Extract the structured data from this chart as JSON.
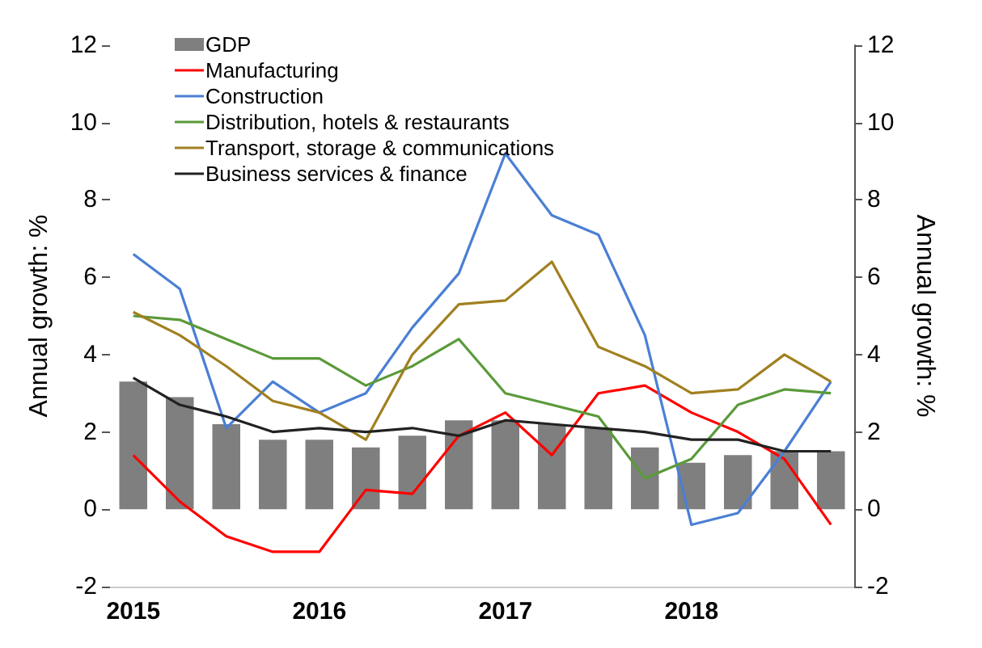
{
  "chart_data": {
    "type": "bar",
    "ylabel": "Annual growth: %",
    "y2label": "Annual growth: %",
    "categories": [
      "2015",
      null,
      null,
      null,
      "2016",
      null,
      null,
      null,
      "2017",
      null,
      null,
      null,
      "2018",
      null,
      null,
      null
    ],
    "series": [
      {
        "name": "GDP",
        "color": "#7f7f7f",
        "values": [
          3.3,
          2.9,
          2.2,
          1.8,
          1.8,
          1.6,
          1.9,
          2.3,
          2.3,
          2.2,
          2.1,
          1.6,
          1.2,
          1.4,
          1.5,
          1.5
        ]
      },
      {
        "name": "Manufacturing",
        "type": "line",
        "color": "#ff0000",
        "values": [
          1.4,
          0.2,
          -0.7,
          -1.1,
          -1.1,
          0.5,
          0.4,
          1.9,
          2.5,
          1.4,
          3.0,
          3.2,
          2.5,
          2.0,
          1.3,
          -0.4
        ]
      },
      {
        "name": "Construction",
        "type": "line",
        "color": "#4a7fd4",
        "values": [
          6.6,
          5.7,
          2.1,
          3.3,
          2.5,
          3.0,
          4.7,
          6.1,
          9.2,
          7.6,
          7.1,
          4.5,
          -0.4,
          -0.1,
          1.5,
          3.3
        ]
      },
      {
        "name": "Distribution, hotels & restaurants",
        "type": "line",
        "color": "#5a9a3a",
        "values": [
          5.0,
          4.9,
          4.4,
          3.9,
          3.9,
          3.2,
          3.7,
          4.4,
          3.0,
          2.7,
          2.4,
          0.8,
          1.3,
          2.7,
          3.1,
          3.0
        ]
      },
      {
        "name": "Transport, storage & communications",
        "type": "line",
        "color": "#a08020",
        "values": [
          5.1,
          4.5,
          3.7,
          2.8,
          2.5,
          1.8,
          4.0,
          5.3,
          5.4,
          6.4,
          4.2,
          3.7,
          3.0,
          3.1,
          4.0,
          3.3
        ]
      },
      {
        "name": "Business services & finance",
        "type": "line",
        "color": "#222222",
        "values": [
          3.4,
          2.7,
          2.4,
          2.0,
          2.1,
          2.0,
          2.1,
          1.9,
          2.3,
          2.2,
          2.1,
          2.0,
          1.8,
          1.8,
          1.5,
          1.5
        ]
      }
    ],
    "ylim": [
      -2,
      12
    ],
    "yticks": [
      -2,
      0,
      2,
      4,
      6,
      8,
      10,
      12
    ],
    "y2lim": [
      -2,
      12
    ],
    "y2ticks": [
      -2,
      0,
      2,
      4,
      6,
      8,
      10,
      12
    ],
    "grid": false,
    "legend": "top left",
    "marker": "none"
  }
}
